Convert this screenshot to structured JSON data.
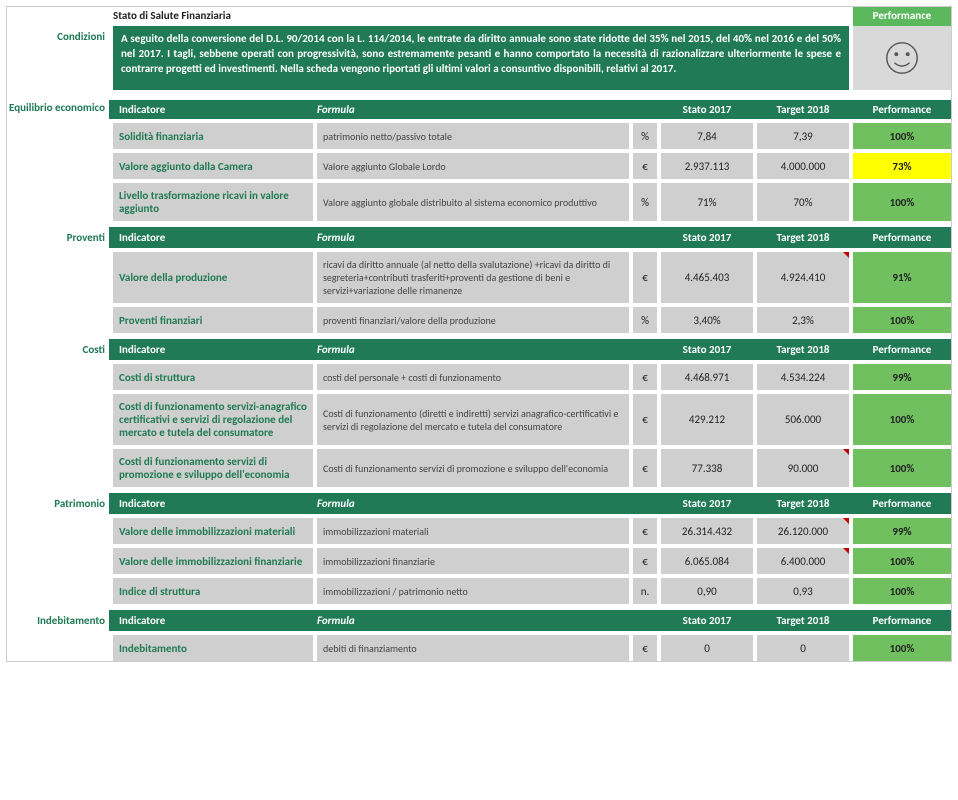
{
  "title": "Stato di Salute Finanziaria",
  "condizioni_label": "Condizioni",
  "condizioni_text": "A seguito della conversione del D.L. 90/2014 con la L. 114/2014, le entrate da diritto annuale sono state ridotte  del 35% nel 2015, del 40% nel 2016 e del 50% nel 2017. I tagli, sebbene operati con progressività, sono estremamente pesanti e hanno comportato la necessità di razionalizzare ulteriormente le spese e contrarre progetti ed investimenti. Nella scheda vengono riportati gli ultimi valori a consuntivo disponibili, relativi al 2017.",
  "performance_label": "Performance",
  "columns": {
    "indicatore": "Indicatore",
    "formula": "Formula",
    "stato": "Stato 2017",
    "target": "Target 2018",
    "performance": "Performance"
  },
  "perf_colors": {
    "green": "#70c060",
    "yellow": "#ffff00"
  },
  "sections": [
    {
      "label": "Equilibrio economico",
      "label_twoline": true,
      "rows": [
        {
          "ind": "Solidità finanziaria",
          "form": "patrimonio netto/passivo totale",
          "unit": "%",
          "stato": "7,84",
          "target": "7,39",
          "perf": "100%",
          "perf_color": "green"
        },
        {
          "ind": "Valore aggiunto dalla Camera",
          "form": "Valore aggiunto Globale Lordo",
          "unit": "€",
          "stato": "2.937.113",
          "target": "4.000.000",
          "perf": "73%",
          "perf_color": "yellow"
        },
        {
          "ind": "Livello trasformazione ricavi in valore aggiunto",
          "form": "Valore aggiunto globale distribuito al sistema economico produttivo",
          "unit": "%",
          "stato": "71%",
          "target": "70%",
          "perf": "100%",
          "perf_color": "green"
        }
      ]
    },
    {
      "label": "Proventi",
      "rows": [
        {
          "ind": "Valore della produzione",
          "form": "ricavi da diritto annuale (al netto della svalutazione) +ricavi da diritto di segreteria+contributi trasferiti+proventi da gestione di beni e servizi+variazione delle rimanenze",
          "unit": "€",
          "stato": "4.465.403",
          "target": "4.924.410",
          "target_mark": true,
          "perf": "91%",
          "perf_color": "green"
        },
        {
          "ind": "Proventi finanziari",
          "form": "proventi finanziari/valore della produzione",
          "unit": "%",
          "stato": "3,40%",
          "target": "2,3%",
          "perf": "100%",
          "perf_color": "green"
        }
      ]
    },
    {
      "label": "Costi",
      "rows": [
        {
          "ind": "Costi di struttura",
          "form": "costi del personale + costi di funzionamento",
          "unit": "€",
          "stato": "4.468.971",
          "target": "4.534.224",
          "perf": "99%",
          "perf_color": "green"
        },
        {
          "ind": "Costi di funzionamento servizi-anagrafico certificativi e servizi di regolazione del mercato e tutela del consumatore",
          "form": "Costi di funzionamento (diretti e indiretti) servizi anagrafico-certificativi e servizi di regolazione del mercato e tutela del consumatore",
          "unit": "€",
          "stato": "429.212",
          "target": "506.000",
          "perf": "100%",
          "perf_color": "green"
        },
        {
          "ind": "Costi di funzionamento servizi di promozione e sviluppo dell'economia",
          "form": "Costi di funzionamento servizi di promozione e sviluppo dell'economia",
          "unit": "€",
          "stato": "77.338",
          "target": "90.000",
          "target_mark": true,
          "perf": "100%",
          "perf_color": "green"
        }
      ]
    },
    {
      "label": "Patrimonio",
      "rows": [
        {
          "ind": "Valore delle immobilizzazioni materiali",
          "form": "immobilizzazioni materiali",
          "unit": "€",
          "stato": "26.314.432",
          "target": "26.120.000",
          "target_mark": true,
          "perf": "99%",
          "perf_color": "green"
        },
        {
          "ind": "Valore delle immobilizzazioni finanziarie",
          "form": "immobilizzazioni finanziarie",
          "unit": "€",
          "stato": "6.065.084",
          "target": "6.400.000",
          "target_mark": true,
          "perf": "100%",
          "perf_color": "green"
        },
        {
          "ind": "Indice di struttura",
          "form": "immobilizzazioni / patrimonio netto",
          "unit": "n.",
          "stato": "0,90",
          "target": "0,93",
          "perf": "100%",
          "perf_color": "green"
        }
      ]
    },
    {
      "label": "Indebitamento",
      "rows": [
        {
          "ind": "Indebitamento",
          "form": "debiti di finanziamento",
          "unit": "€",
          "stato": "0",
          "target": "0",
          "perf": "100%",
          "perf_color": "green"
        }
      ]
    }
  ]
}
